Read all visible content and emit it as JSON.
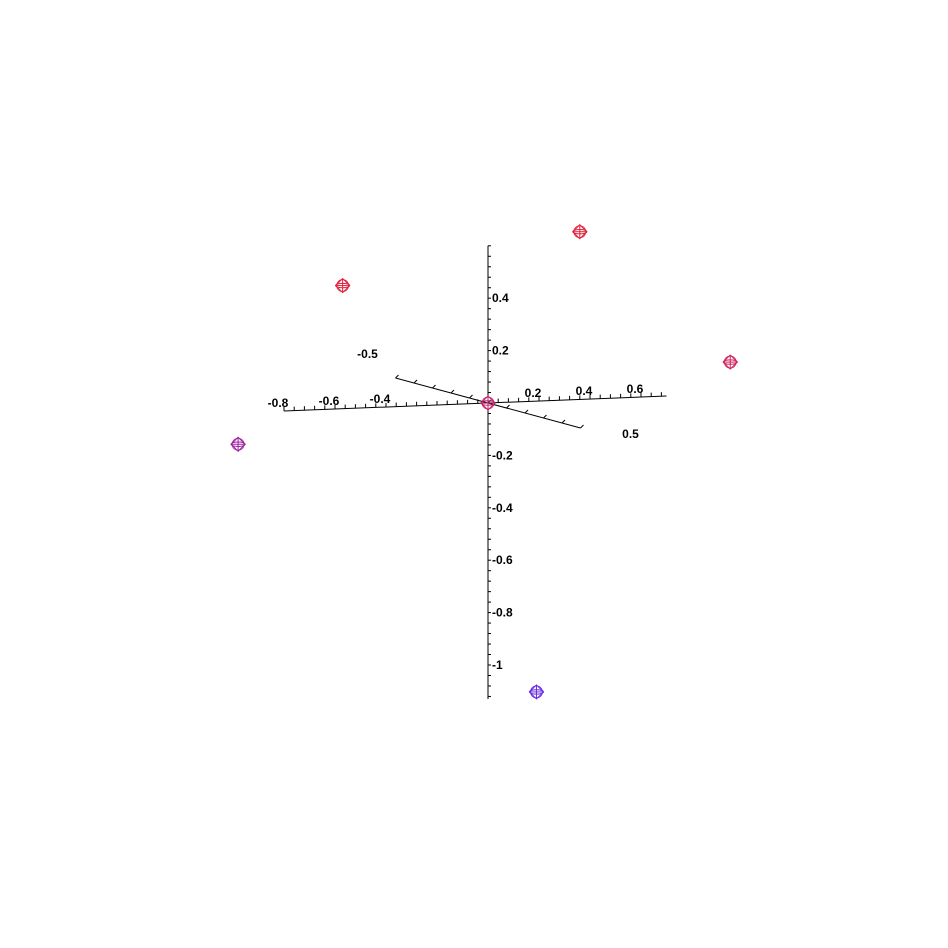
{
  "chart_data": {
    "type": "scatter",
    "projection": "3d",
    "title": "",
    "grid": false,
    "legend": "none",
    "axes": {
      "x": {
        "ticks": [
          "-0.8",
          "-0.6",
          "-0.4",
          "0.2",
          "0.4",
          "0.6"
        ]
      },
      "y": {
        "ticks": [
          "-0.5",
          "0.5"
        ]
      },
      "z": {
        "ticks": [
          "0.4",
          "0.2",
          "-0.2",
          "-0.4",
          "-0.6",
          "-0.8",
          "-1"
        ]
      }
    },
    "points": [
      {
        "x": 0.0,
        "y": 0.0,
        "z": 0.0,
        "color": "#c0206a"
      },
      {
        "x": -0.57,
        "y": 0.0,
        "z": 0.47,
        "color": "#e0203a"
      },
      {
        "x": 0.36,
        "y": 0.0,
        "z": 0.64,
        "color": "#e0203a"
      },
      {
        "x": 0.95,
        "y": 0.0,
        "z": 0.12,
        "color": "#d0205a"
      },
      {
        "x": -0.98,
        "y": 0.0,
        "z": -0.12,
        "color": "#a020a0"
      },
      {
        "x": 0.19,
        "y": 0.0,
        "z": -1.11,
        "color": "#6a2ae0"
      }
    ]
  }
}
